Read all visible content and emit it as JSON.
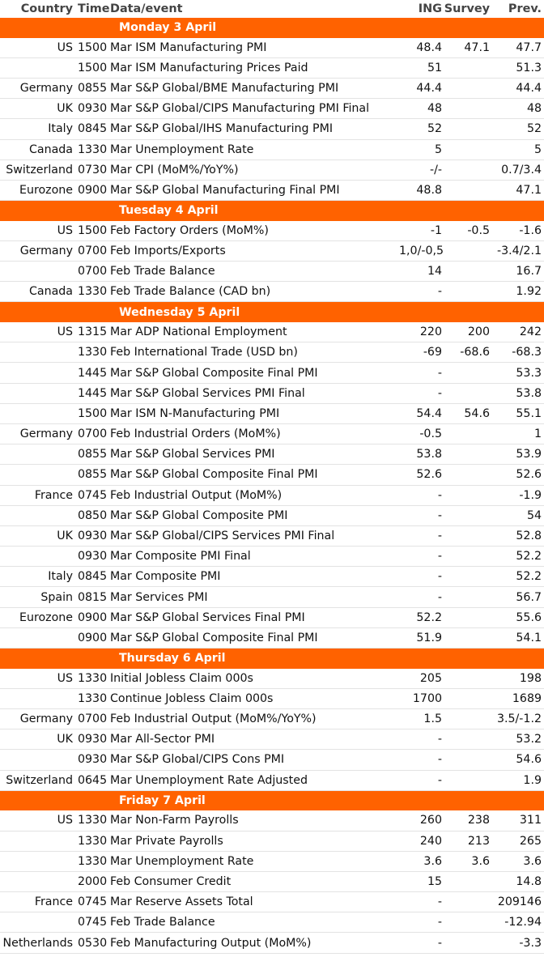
{
  "header": {
    "country": "Country",
    "time": "Time",
    "event": "Data/event",
    "ing": "ING",
    "survey": "Survey",
    "prev": "Prev."
  },
  "days": [
    {
      "title": "Monday 3 April",
      "rows": [
        {
          "country": "US",
          "time": "1500",
          "event": "Mar ISM Manufacturing PMI",
          "ing": "48.4",
          "survey": "47.1",
          "prev": "47.7"
        },
        {
          "country": "",
          "time": "1500",
          "event": "Mar ISM Manufacturing Prices Paid",
          "ing": "51",
          "survey": "",
          "prev": "51.3"
        },
        {
          "country": "Germany",
          "time": "0855",
          "event": "Mar S&P Global/BME Manufacturing PMI",
          "ing": "44.4",
          "survey": "",
          "prev": "44.4"
        },
        {
          "country": "UK",
          "time": "0930",
          "event": "Mar S&P Global/CIPS Manufacturing PMI Final",
          "ing": "48",
          "survey": "",
          "prev": "48"
        },
        {
          "country": "Italy",
          "time": "0845",
          "event": "Mar S&P Global/IHS Manufacturing PMI",
          "ing": "52",
          "survey": "",
          "prev": "52"
        },
        {
          "country": "Canada",
          "time": "1330",
          "event": "Mar Unemployment Rate",
          "ing": "5",
          "survey": "",
          "prev": "5"
        },
        {
          "country": "Switzerland",
          "time": "0730",
          "event": "Mar CPI (MoM%/YoY%)",
          "ing": "-/-",
          "survey": "",
          "prev": "0.7/3.4"
        },
        {
          "country": "Eurozone",
          "time": "0900",
          "event": "Mar S&P Global Manufacturing Final PMI",
          "ing": "48.8",
          "survey": "",
          "prev": "47.1"
        }
      ]
    },
    {
      "title": "Tuesday 4 April",
      "rows": [
        {
          "country": "US",
          "time": "1500",
          "event": "Feb Factory Orders (MoM%)",
          "ing": "-1",
          "survey": "-0.5",
          "prev": "-1.6"
        },
        {
          "country": "Germany",
          "time": "0700",
          "event": "Feb Imports/Exports",
          "ing": "1,0/-0,5",
          "survey": "",
          "prev": "-3.4/2.1"
        },
        {
          "country": "",
          "time": "0700",
          "event": "Feb Trade Balance",
          "ing": "14",
          "survey": "",
          "prev": "16.7"
        },
        {
          "country": "Canada",
          "time": "1330",
          "event": "Feb Trade Balance (CAD bn)",
          "ing": "-",
          "survey": "",
          "prev": "1.92"
        }
      ]
    },
    {
      "title": "Wednesday 5 April",
      "rows": [
        {
          "country": "US",
          "time": "1315",
          "event": "Mar ADP National Employment",
          "ing": "220",
          "survey": "200",
          "prev": "242"
        },
        {
          "country": "",
          "time": "1330",
          "event": "Feb International Trade (USD bn)",
          "ing": "-69",
          "survey": "-68.6",
          "prev": "-68.3"
        },
        {
          "country": "",
          "time": "1445",
          "event": "Mar S&P Global Composite Final PMI",
          "ing": "-",
          "survey": "",
          "prev": "53.3"
        },
        {
          "country": "",
          "time": "1445",
          "event": "Mar S&P Global Services PMI Final",
          "ing": "-",
          "survey": "",
          "prev": "53.8"
        },
        {
          "country": "",
          "time": "1500",
          "event": "Mar ISM N-Manufacturing PMI",
          "ing": "54.4",
          "survey": "54.6",
          "prev": "55.1"
        },
        {
          "country": "Germany",
          "time": "0700",
          "event": "Feb Industrial Orders (MoM%)",
          "ing": "-0.5",
          "survey": "",
          "prev": "1"
        },
        {
          "country": "",
          "time": "0855",
          "event": "Mar S&P Global Services PMI",
          "ing": "53.8",
          "survey": "",
          "prev": "53.9"
        },
        {
          "country": "",
          "time": "0855",
          "event": "Mar S&P Global Composite Final PMI",
          "ing": "52.6",
          "survey": "",
          "prev": "52.6"
        },
        {
          "country": "France",
          "time": "0745",
          "event": "Feb Industrial Output (MoM%)",
          "ing": "-",
          "survey": "",
          "prev": "-1.9"
        },
        {
          "country": "",
          "time": "0850",
          "event": "Mar S&P Global Composite PMI",
          "ing": "-",
          "survey": "",
          "prev": "54"
        },
        {
          "country": "UK",
          "time": "0930",
          "event": "Mar S&P Global/CIPS Services PMI Final",
          "ing": "-",
          "survey": "",
          "prev": "52.8"
        },
        {
          "country": "",
          "time": "0930",
          "event": "Mar Composite PMI Final",
          "ing": "-",
          "survey": "",
          "prev": "52.2"
        },
        {
          "country": "Italy",
          "time": "0845",
          "event": "Mar Composite PMI",
          "ing": "-",
          "survey": "",
          "prev": "52.2"
        },
        {
          "country": "Spain",
          "time": "0815",
          "event": "Mar Services PMI",
          "ing": "-",
          "survey": "",
          "prev": "56.7"
        },
        {
          "country": "Eurozone",
          "time": "0900",
          "event": "Mar S&P Global Services Final PMI",
          "ing": "52.2",
          "survey": "",
          "prev": "55.6"
        },
        {
          "country": "",
          "time": "0900",
          "event": "Mar S&P Global Composite Final PMI",
          "ing": "51.9",
          "survey": "",
          "prev": "54.1"
        }
      ]
    },
    {
      "title": "Thursday 6 April",
      "rows": [
        {
          "country": "US",
          "time": "1330",
          "event": "Initial Jobless Claim 000s",
          "ing": "205",
          "survey": "",
          "prev": "198"
        },
        {
          "country": "",
          "time": "1330",
          "event": "Continue Jobless Claim 000s",
          "ing": "1700",
          "survey": "",
          "prev": "1689"
        },
        {
          "country": "Germany",
          "time": "0700",
          "event": "Feb Industrial Output (MoM%/YoY%)",
          "ing": "1.5",
          "survey": "",
          "prev": "3.5/-1.2"
        },
        {
          "country": "UK",
          "time": "0930",
          "event": "Mar All-Sector PMI",
          "ing": "-",
          "survey": "",
          "prev": "53.2"
        },
        {
          "country": "",
          "time": "0930",
          "event": "Mar S&P Global/CIPS Cons PMI",
          "ing": "-",
          "survey": "",
          "prev": "54.6"
        },
        {
          "country": "Switzerland",
          "time": "0645",
          "event": "Mar Unemployment Rate Adjusted",
          "ing": "-",
          "survey": "",
          "prev": "1.9"
        }
      ]
    },
    {
      "title": "Friday 7 April",
      "rows": [
        {
          "country": "US",
          "time": "1330",
          "event": "Mar Non-Farm Payrolls",
          "ing": "260",
          "survey": "238",
          "prev": "311"
        },
        {
          "country": "",
          "time": "1330",
          "event": "Mar Private Payrolls",
          "ing": "240",
          "survey": "213",
          "prev": "265"
        },
        {
          "country": "",
          "time": "1330",
          "event": "Mar Unemployment Rate",
          "ing": "3.6",
          "survey": "3.6",
          "prev": "3.6"
        },
        {
          "country": "",
          "time": "2000",
          "event": "Feb Consumer Credit",
          "ing": "15",
          "survey": "",
          "prev": "14.8"
        },
        {
          "country": "France",
          "time": "0745",
          "event": "Mar Reserve Assets Total",
          "ing": "-",
          "survey": "",
          "prev": "209146"
        },
        {
          "country": "",
          "time": "0745",
          "event": "Feb Trade Balance",
          "ing": "-",
          "survey": "",
          "prev": "-12.94"
        },
        {
          "country": "Netherlands",
          "time": "0530",
          "event": "Feb Manufacturing Output (MoM%)",
          "ing": "-",
          "survey": "",
          "prev": "-3.3"
        }
      ]
    }
  ]
}
